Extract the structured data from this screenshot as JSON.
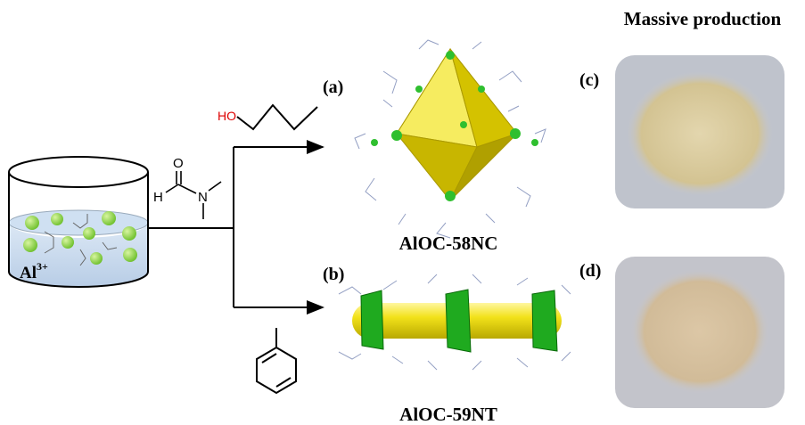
{
  "header": {
    "title": "Massive production"
  },
  "reactant": {
    "element": "Al",
    "charge": "3+"
  },
  "reagents": {
    "butanol": {
      "atom": "HO"
    },
    "dmf": {
      "h": "H",
      "o": "O",
      "n": "N"
    }
  },
  "products": [
    {
      "tag": "(a)",
      "name": "AlOC-58NC"
    },
    {
      "tag": "(b)",
      "name": "AlOC-59NT"
    }
  ],
  "photos": [
    {
      "tag": "(c)"
    },
    {
      "tag": "(d)"
    }
  ]
}
